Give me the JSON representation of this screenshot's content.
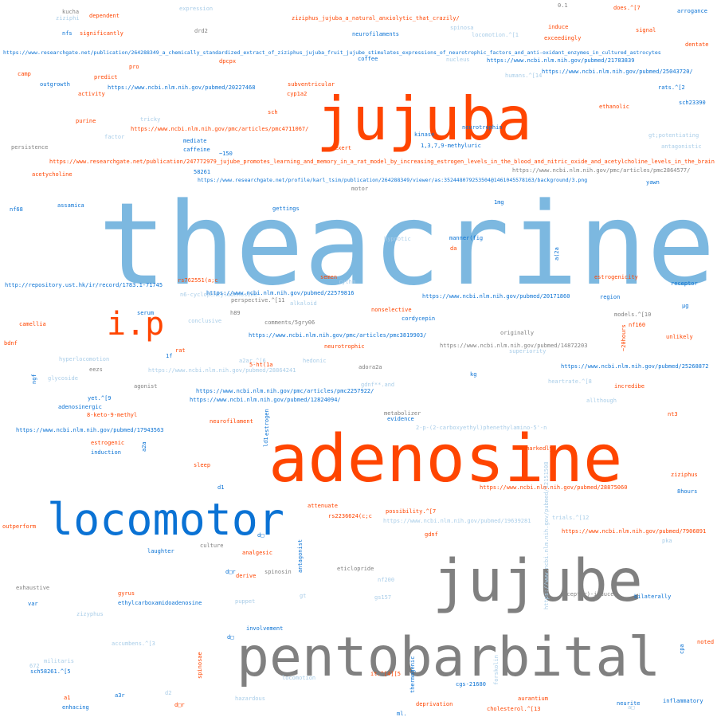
{
  "colors": {
    "orange": "#ff4500",
    "sky": "#7cb8e0",
    "blue": "#0a72d4",
    "gray": "#808080",
    "light": "#a9cde8"
  },
  "words": [
    {
      "t": "theacrine",
      "c": "sky"
    },
    {
      "t": "jujuba",
      "c": "orange"
    },
    {
      "t": "adenosine",
      "c": "orange"
    },
    {
      "t": "jujube",
      "c": "gray"
    },
    {
      "t": "pentobarbital",
      "c": "gray"
    },
    {
      "t": "locomotor",
      "c": "blue"
    },
    {
      "t": "i.p",
      "c": "orange"
    },
    {
      "t": "kucha",
      "c": "gray"
    },
    {
      "t": "ziziphi",
      "c": "light"
    },
    {
      "t": "dependent",
      "c": "orange"
    },
    {
      "t": "expression",
      "c": "light"
    },
    {
      "t": "ziziphus_jujuba_a_natural_anxiolytic_that_crazily/",
      "c": "orange"
    },
    {
      "t": "0.1",
      "c": "gray"
    },
    {
      "t": "does.^[7",
      "c": "orange"
    },
    {
      "t": "arrogance",
      "c": "blue"
    },
    {
      "t": "nfs",
      "c": "blue"
    },
    {
      "t": "significantly",
      "c": "orange"
    },
    {
      "t": "drd2",
      "c": "gray"
    },
    {
      "t": "neurofilaments",
      "c": "blue"
    },
    {
      "t": "spinosa",
      "c": "light"
    },
    {
      "t": "locomotion.^[1",
      "c": "light"
    },
    {
      "t": "induce",
      "c": "orange"
    },
    {
      "t": "signal",
      "c": "orange"
    },
    {
      "t": "exceedingly",
      "c": "orange"
    },
    {
      "t": "dentate",
      "c": "orange"
    },
    {
      "t": "https://www.researchgate.net/publication/264288349_a_chemically_standardized_extract_of_ziziphus_jujuba_fruit_jujube_stimulates_expressions_of_neurotrophic_factors_and_anti-oxidant_enzymes_in_cultured_astrocytes",
      "c": "blue"
    },
    {
      "t": "coffee",
      "c": "blue"
    },
    {
      "t": "nucleus",
      "c": "light"
    },
    {
      "t": "https://www.ncbi.nlm.nih.gov/pubmed/21783839",
      "c": "blue"
    },
    {
      "t": "pro",
      "c": "orange"
    },
    {
      "t": "dpcpx",
      "c": "orange"
    },
    {
      "t": "https://www.ncbi.nlm.nih.gov/pubmed/25043720/",
      "c": "blue"
    },
    {
      "t": "camp",
      "c": "orange"
    },
    {
      "t": "predict",
      "c": "orange"
    },
    {
      "t": "humans.^[14",
      "c": "light"
    },
    {
      "t": "outgrowth",
      "c": "blue"
    },
    {
      "t": "https://www.ncbi.nlm.nih.gov/pubmed/20227468",
      "c": "blue"
    },
    {
      "t": "subventricular",
      "c": "orange"
    },
    {
      "t": "rats.^[2",
      "c": "blue"
    },
    {
      "t": "activity",
      "c": "orange"
    },
    {
      "t": "cyp1a2",
      "c": "orange"
    },
    {
      "t": "sch23390",
      "c": "blue"
    },
    {
      "t": "ethanolic",
      "c": "orange"
    },
    {
      "t": "sch",
      "c": "orange"
    },
    {
      "t": "purine",
      "c": "orange"
    },
    {
      "t": "tricky",
      "c": "light"
    },
    {
      "t": "https://www.ncbi.nlm.nih.gov/pmc/articles/pmc4711067/",
      "c": "orange"
    },
    {
      "t": "neurotrophin",
      "c": "blue"
    },
    {
      "t": "gt;potentiating",
      "c": "light"
    },
    {
      "t": "factor",
      "c": "light"
    },
    {
      "t": "kinase",
      "c": "blue"
    },
    {
      "t": "mediate",
      "c": "blue"
    },
    {
      "t": "1,3,7,9-methyluric",
      "c": "blue"
    },
    {
      "t": "persistence",
      "c": "gray"
    },
    {
      "t": "caffeine",
      "c": "blue"
    },
    {
      "t": "exert",
      "c": "orange"
    },
    {
      "t": "antagonistic",
      "c": "light"
    },
    {
      "t": "~150",
      "c": "blue"
    },
    {
      "t": "https://www.researchgate.net/publication/247772979_jujube_promotes_learning_and_memory_in_a_rat_model_by_increasing_estrogen_levels_in_the_blood_and_nitric_oxide_and_acetylcholine_levels_in_the_brain",
      "c": "orange"
    },
    {
      "t": "58261",
      "c": "blue"
    },
    {
      "t": "https://www.ncbi.nlm.nih.gov/pmc/articles/pmc2864577/",
      "c": "gray"
    },
    {
      "t": "acetycholine",
      "c": "orange"
    },
    {
      "t": "https://www.researchgate.net/profile/karl_tsim/publication/264288349/viewer/as:352448079253504@1461045578163/background/3.png",
      "c": "blue"
    },
    {
      "t": "yawn",
      "c": "blue"
    },
    {
      "t": "motor",
      "c": "gray"
    },
    {
      "t": "nf68",
      "c": "blue"
    },
    {
      "t": "assamica",
      "c": "blue"
    },
    {
      "t": "gettings",
      "c": "blue"
    },
    {
      "t": "1mg",
      "c": "blue"
    },
    {
      "t": "hypnotic",
      "c": "light"
    },
    {
      "t": "manner(fig",
      "c": "blue"
    },
    {
      "t": "da",
      "c": "orange"
    },
    {
      "t": "a(2a",
      "c": "blue"
    },
    {
      "t": "estrogenicity",
      "c": "orange"
    },
    {
      "t": "rs762551(a;c",
      "c": "orange"
    },
    {
      "t": "http://repository.ust.hk/ir/record/1783.1-71745",
      "c": "blue"
    },
    {
      "t": "semen",
      "c": "orange"
    },
    {
      "t": "receptor",
      "c": "blue"
    },
    {
      "t": "rythm",
      "c": "light"
    },
    {
      "t": "n6-cyclopentyladenosine",
      "c": "light"
    },
    {
      "t": "https://www.ncbi.nlm.nih.gov/pubmed/22579816",
      "c": "blue"
    },
    {
      "t": "https://www.ncbi.nlm.nih.gov/pubmed/20171860",
      "c": "blue"
    },
    {
      "t": "region",
      "c": "blue"
    },
    {
      "t": "perspective.^[11",
      "c": "gray"
    },
    {
      "t": "alkaloid",
      "c": "light"
    },
    {
      "t": "μg",
      "c": "blue"
    },
    {
      "t": "serum",
      "c": "blue"
    },
    {
      "t": "h89",
      "c": "gray"
    },
    {
      "t": "nonselective",
      "c": "orange"
    },
    {
      "t": "models.^[10",
      "c": "gray"
    },
    {
      "t": "camellia",
      "c": "orange"
    },
    {
      "t": "conclusive",
      "c": "light"
    },
    {
      "t": "comments/5gry06",
      "c": "gray"
    },
    {
      "t": "cordycepin",
      "c": "blue"
    },
    {
      "t": "nf160",
      "c": "orange"
    },
    {
      "t": "unlikely",
      "c": "orange"
    },
    {
      "t": "bdnf",
      "c": "orange"
    },
    {
      "t": "https://www.ncbi.nlm.nih.gov/pmc/articles/pmc3819903/",
      "c": "blue"
    },
    {
      "t": "originally",
      "c": "gray"
    },
    {
      "t": "~20hours",
      "c": "orange"
    },
    {
      "t": "neurotrophic",
      "c": "orange"
    },
    {
      "t": "https://www.ncbi.nlm.nih.gov/pubmed/14872203",
      "c": "gray"
    },
    {
      "t": "superiority",
      "c": "light"
    },
    {
      "t": "rat",
      "c": "orange"
    },
    {
      "t": "1f",
      "c": "blue"
    },
    {
      "t": "hyperlocomotion",
      "c": "light"
    },
    {
      "t": "a2ar.^[6",
      "c": "light"
    },
    {
      "t": "hedonic",
      "c": "light"
    },
    {
      "t": "adora2a",
      "c": "gray"
    },
    {
      "t": "5-ht(1a",
      "c": "orange"
    },
    {
      "t": "https://www.ncbi.nlm.nih.gov/pubmed/25268872",
      "c": "blue"
    },
    {
      "t": "eezs",
      "c": "gray"
    },
    {
      "t": "https://www.ncbi.nlm.nih.gov/pubmed/28864241",
      "c": "light"
    },
    {
      "t": "ngf",
      "c": "blue"
    },
    {
      "t": "glycoside",
      "c": "light"
    },
    {
      "t": "kg",
      "c": "blue"
    },
    {
      "t": "heartrate.^[8",
      "c": "light"
    },
    {
      "t": "agonist",
      "c": "gray"
    },
    {
      "t": "gdnf**.and",
      "c": "light"
    },
    {
      "t": "incredibe",
      "c": "orange"
    },
    {
      "t": "https://www.ncbi.nlm.nih.gov/pmc/articles/pmc2257922/",
      "c": "blue"
    },
    {
      "t": "yet.^[9",
      "c": "blue"
    },
    {
      "t": "https://www.ncbi.nlm.nih.gov/pubmed/12824094/",
      "c": "blue"
    },
    {
      "t": "allthough",
      "c": "light"
    },
    {
      "t": "adenosinergic",
      "c": "blue"
    },
    {
      "t": "8-keto-9-methyl",
      "c": "orange"
    },
    {
      "t": "metabolizer",
      "c": "gray"
    },
    {
      "t": "nt3",
      "c": "orange"
    },
    {
      "t": "estrogen",
      "c": "blue"
    },
    {
      "t": "evidence",
      "c": "blue"
    },
    {
      "t": "neurofilament",
      "c": "orange"
    },
    {
      "t": "https://www.ncbi.nlm.nih.gov/pubmed/17943563",
      "c": "blue"
    },
    {
      "t": "2-p-(2-carboxyethyl)phenethylamino-5'-n",
      "c": "light"
    },
    {
      "t": "ld1",
      "c": "blue"
    },
    {
      "t": "estrogenic",
      "c": "orange"
    },
    {
      "t": "a2a",
      "c": "blue"
    },
    {
      "t": "induction",
      "c": "blue"
    },
    {
      "t": "markedly",
      "c": "orange"
    },
    {
      "t": "ziziphus",
      "c": "orange"
    },
    {
      "t": "sleep",
      "c": "orange"
    },
    {
      "t": "https://www.ncbi.nlm.nih.gov/pubmed/28875060",
      "c": "orange"
    },
    {
      "t": "d1",
      "c": "blue"
    },
    {
      "t": "8hours",
      "c": "blue"
    },
    {
      "t": "https://www.ncbi.nlm.nih.gov/pubmed/12151508",
      "c": "light"
    },
    {
      "t": "attenuate",
      "c": "orange"
    },
    {
      "t": "possibility.^[7",
      "c": "orange"
    },
    {
      "t": "trials.^[12",
      "c": "light"
    },
    {
      "t": "rs2236624(c;c",
      "c": "orange"
    },
    {
      "t": "https://www.ncbi.nlm.nih.gov/pubmed/19639281",
      "c": "light"
    },
    {
      "t": "outperform",
      "c": "orange"
    },
    {
      "t": "d□",
      "c": "blue"
    },
    {
      "t": "gdnf",
      "c": "orange"
    },
    {
      "t": "https://www.ncbi.nlm.nih.gov/pubmed/7906891",
      "c": "orange"
    },
    {
      "t": "pka",
      "c": "light"
    },
    {
      "t": "culture",
      "c": "gray"
    },
    {
      "t": "laughter",
      "c": "blue"
    },
    {
      "t": "antagonist",
      "c": "blue"
    },
    {
      "t": "analgesic",
      "c": "orange"
    },
    {
      "t": "d□r",
      "c": "blue"
    },
    {
      "t": "spinosin",
      "c": "gray"
    },
    {
      "t": "eticlopride",
      "c": "gray"
    },
    {
      "t": "derive",
      "c": "orange"
    },
    {
      "t": "nf200",
      "c": "light"
    },
    {
      "t": "exhaustive",
      "c": "gray"
    },
    {
      "t": "gt",
      "c": "light"
    },
    {
      "t": "gyrus",
      "c": "orange"
    },
    {
      "t": "ethylcarboxamidoadenosine",
      "c": "blue"
    },
    {
      "t": "var",
      "c": "blue"
    },
    {
      "t": "puppet",
      "c": "light"
    },
    {
      "t": "gs157",
      "c": "light"
    },
    {
      "t": "receptor)-induced",
      "c": "gray"
    },
    {
      "t": "bilaterally",
      "c": "blue"
    },
    {
      "t": "zizyphus",
      "c": "light"
    },
    {
      "t": "involvement",
      "c": "blue"
    },
    {
      "t": "accumbens.^[3",
      "c": "light"
    },
    {
      "t": "d□",
      "c": "blue"
    },
    {
      "t": "noted",
      "c": "orange"
    },
    {
      "t": "cpa",
      "c": "blue"
    },
    {
      "t": "militaris",
      "c": "light"
    },
    {
      "t": "672",
      "c": "light"
    },
    {
      "t": "sch58261.^[5",
      "c": "blue"
    },
    {
      "t": "spinosae",
      "c": "orange"
    },
    {
      "t": "locomotion",
      "c": "light"
    },
    {
      "t": "it.^[4][5",
      "c": "orange"
    },
    {
      "t": "thermogenic",
      "c": "blue"
    },
    {
      "t": "forskolin",
      "c": "light"
    },
    {
      "t": "cgs-21680",
      "c": "blue"
    },
    {
      "t": "d2",
      "c": "light"
    },
    {
      "t": "a3r",
      "c": "blue"
    },
    {
      "t": "a1",
      "c": "orange"
    },
    {
      "t": "hazardous",
      "c": "light"
    },
    {
      "t": "aurantium",
      "c": "orange"
    },
    {
      "t": "neurite",
      "c": "blue"
    },
    {
      "t": "inflammatory",
      "c": "blue"
    },
    {
      "t": "deprivation",
      "c": "orange"
    },
    {
      "t": "enhacing",
      "c": "blue"
    },
    {
      "t": "d□r",
      "c": "orange"
    },
    {
      "t": "ml.",
      "c": "blue"
    },
    {
      "t": "cholesterol.^[13",
      "c": "orange"
    },
    {
      "t": "a□",
      "c": "light"
    }
  ]
}
